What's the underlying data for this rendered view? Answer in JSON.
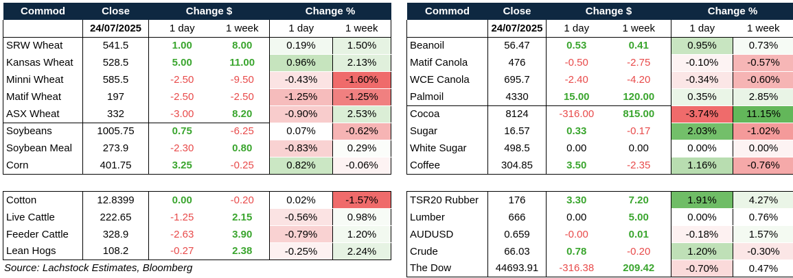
{
  "headers": {
    "commod": "Commod",
    "close": "Close",
    "change_dollar": "Change $",
    "change_pct": "Change %",
    "date": "24/07/2025",
    "one_day": "1 day",
    "one_week": "1 week"
  },
  "tables": [
    {
      "rows": [
        {
          "name": "SRW Wheat",
          "close": "541.5",
          "d1": "1.00",
          "w1": "8.00",
          "p1": "0.19%",
          "pw": "1.50%",
          "c_d1": "pos",
          "c_w1": "pos",
          "bg_p1": "#f2f9f1",
          "bg_pw": "#e6f3e3"
        },
        {
          "name": "Kansas Wheat",
          "close": "528.5",
          "d1": "5.00",
          "w1": "11.00",
          "p1": "0.96%",
          "pw": "2.13%",
          "c_d1": "pos",
          "c_w1": "pos",
          "bg_p1": "#c6e4be",
          "bg_pw": "#e0f0dc"
        },
        {
          "name": "Minni Wheat",
          "close": "585.5",
          "d1": "-2.50",
          "w1": "-9.50",
          "p1": "-0.43%",
          "pw": "-1.60%",
          "c_d1": "neg",
          "c_w1": "neg",
          "bg_p1": "#fbe3e3",
          "bg_pw": "#ef6b6b"
        },
        {
          "name": "Matif Wheat",
          "close": "197",
          "d1": "-2.50",
          "w1": "-2.50",
          "p1": "-1.25%",
          "pw": "-1.25%",
          "c_d1": "neg",
          "c_w1": "neg",
          "bg_p1": "#f6bcbc",
          "bg_pw": "#f08080"
        },
        {
          "name": "ASX Wheat",
          "close": "332",
          "d1": "-3.00",
          "w1": "8.20",
          "p1": "-0.90%",
          "pw": "2.53%",
          "c_d1": "neg",
          "c_w1": "pos",
          "bg_p1": "#f8cccc",
          "bg_pw": "#dbeed6"
        },
        {
          "name": "Soybeans",
          "close": "1005.75",
          "d1": "0.75",
          "w1": "-6.25",
          "p1": "0.07%",
          "pw": "-0.62%",
          "c_d1": "pos",
          "c_w1": "neg",
          "bg_p1": "#ffffff",
          "bg_pw": "#f6b4b4"
        },
        {
          "name": "Soybean Meal",
          "close": "273.9",
          "d1": "-2.30",
          "w1": "0.80",
          "p1": "-0.83%",
          "pw": "0.29%",
          "c_d1": "neg",
          "c_w1": "pos",
          "bg_p1": "#f9d2d2",
          "bg_pw": "#fbfdfa"
        },
        {
          "name": "Corn",
          "close": "401.75",
          "d1": "3.25",
          "w1": "-0.25",
          "p1": "0.82%",
          "pw": "-0.06%",
          "c_d1": "pos",
          "c_w1": "neg",
          "bg_p1": "#cbe7c4",
          "bg_pw": "#fdf3f3"
        }
      ]
    },
    {
      "rows": [
        {
          "name": "Beanoil",
          "close": "56.47",
          "d1": "0.53",
          "w1": "0.41",
          "p1": "0.95%",
          "pw": "0.73%",
          "c_d1": "pos",
          "c_w1": "pos",
          "bg_p1": "#c8e5c1",
          "bg_pw": "#f6fbf5"
        },
        {
          "name": "Matif Canola",
          "close": "476",
          "d1": "-0.50",
          "w1": "-2.75",
          "p1": "-0.10%",
          "pw": "-0.57%",
          "c_d1": "neg",
          "c_w1": "neg",
          "bg_p1": "#fdf3f3",
          "bg_pw": "#f6b6b6"
        },
        {
          "name": "WCE Canola",
          "close": "695.7",
          "d1": "-2.40",
          "w1": "-4.20",
          "p1": "-0.34%",
          "pw": "-0.60%",
          "c_d1": "neg",
          "c_w1": "neg",
          "bg_p1": "#fbe6e6",
          "bg_pw": "#f6b4b4"
        },
        {
          "name": "Palmoil",
          "close": "4330",
          "d1": "15.00",
          "w1": "120.00",
          "p1": "0.35%",
          "pw": "2.85%",
          "c_d1": "pos",
          "c_w1": "pos",
          "bg_p1": "#eaf5e7",
          "bg_pw": "#e9f4e6"
        },
        {
          "name": "Cocoa",
          "close": "8124",
          "d1": "-316.00",
          "w1": "815.00",
          "p1": "-3.74%",
          "pw": "11.15%",
          "c_d1": "neg",
          "c_w1": "pos",
          "bg_p1": "#ef6b6b",
          "bg_pw": "#63b75a"
        },
        {
          "name": "Sugar",
          "close": "16.57",
          "d1": "0.33",
          "w1": "-0.17",
          "p1": "2.03%",
          "pw": "-1.02%",
          "c_d1": "pos",
          "c_w1": "neg",
          "bg_p1": "#73bf6a",
          "bg_pw": "#f49a9a"
        },
        {
          "name": "White Sugar",
          "close": "498.5",
          "d1": "0.00",
          "w1": "0.00",
          "p1": "0.00%",
          "pw": "0.00%",
          "c_d1": "zero",
          "c_w1": "zero",
          "bg_p1": "#ffffff",
          "bg_pw": "#fdf3f3"
        },
        {
          "name": "Coffee",
          "close": "304.85",
          "d1": "3.50",
          "w1": "-2.35",
          "p1": "1.16%",
          "pw": "-0.76%",
          "c_d1": "pos",
          "c_w1": "neg",
          "bg_p1": "#b8ddb0",
          "bg_pw": "#f5a9a9"
        }
      ]
    },
    {
      "rows": [
        {
          "name": "Cotton",
          "close": "12.8399",
          "d1": "0.00",
          "w1": "-0.20",
          "p1": "0.02%",
          "pw": "-1.57%",
          "c_d1": "pos",
          "c_w1": "neg",
          "bg_p1": "#ffffff",
          "bg_pw": "#ef6b6b"
        },
        {
          "name": "Live Cattle",
          "close": "222.65",
          "d1": "-1.25",
          "w1": "2.15",
          "p1": "-0.56%",
          "pw": "0.98%",
          "c_d1": "neg",
          "c_w1": "pos",
          "bg_p1": "#fbe3e3",
          "bg_pw": "#f7fbf6"
        },
        {
          "name": "Feeder Cattle",
          "close": "328.9",
          "d1": "-2.63",
          "w1": "3.90",
          "p1": "-0.79%",
          "pw": "1.20%",
          "c_d1": "neg",
          "c_w1": "pos",
          "bg_p1": "#f9d2d2",
          "bg_pw": "#f2f9f0"
        },
        {
          "name": "Lean Hogs",
          "close": "108.2",
          "d1": "-0.27",
          "w1": "2.38",
          "p1": "-0.25%",
          "pw": "2.24%",
          "c_d1": "neg",
          "c_w1": "pos",
          "bg_p1": "#fdf1f1",
          "bg_pw": "#e6f3e3"
        }
      ]
    },
    {
      "rows": [
        {
          "name": "TSR20 Rubber",
          "close": "176",
          "d1": "3.30",
          "w1": "7.20",
          "p1": "1.91%",
          "pw": "4.27%",
          "c_d1": "pos",
          "c_w1": "pos",
          "bg_p1": "#6fbd66",
          "bg_pw": "#eaf5e7"
        },
        {
          "name": "Lumber",
          "close": "666",
          "d1": "0.00",
          "w1": "5.00",
          "p1": "0.00%",
          "pw": "0.76%",
          "c_d1": "zero",
          "c_w1": "pos",
          "bg_p1": "#ffffff",
          "bg_pw": "#ffffff"
        },
        {
          "name": "AUDUSD",
          "close": "0.659",
          "d1": "-0.00",
          "w1": "0.01",
          "p1": "-0.18%",
          "pw": "1.57%",
          "c_d1": "neg",
          "c_w1": "pos",
          "bg_p1": "#fdf1f1",
          "bg_pw": "#f4faf2"
        },
        {
          "name": "Crude",
          "close": "66.03",
          "d1": "0.78",
          "w1": "-0.20",
          "p1": "1.20%",
          "pw": "-0.30%",
          "c_d1": "pos",
          "c_w1": "neg",
          "bg_p1": "#bfe0b7",
          "bg_pw": "#fbe6e6"
        },
        {
          "name": "The Dow",
          "close": "44693.91",
          "d1": "-316.38",
          "w1": "209.42",
          "p1": "-0.70%",
          "pw": "0.47%",
          "c_d1": "neg",
          "c_w1": "pos",
          "bg_p1": "#fadada",
          "bg_pw": "#ffffff"
        }
      ]
    }
  ],
  "source": "Source: Lachstock Estimates, Bloomberg"
}
